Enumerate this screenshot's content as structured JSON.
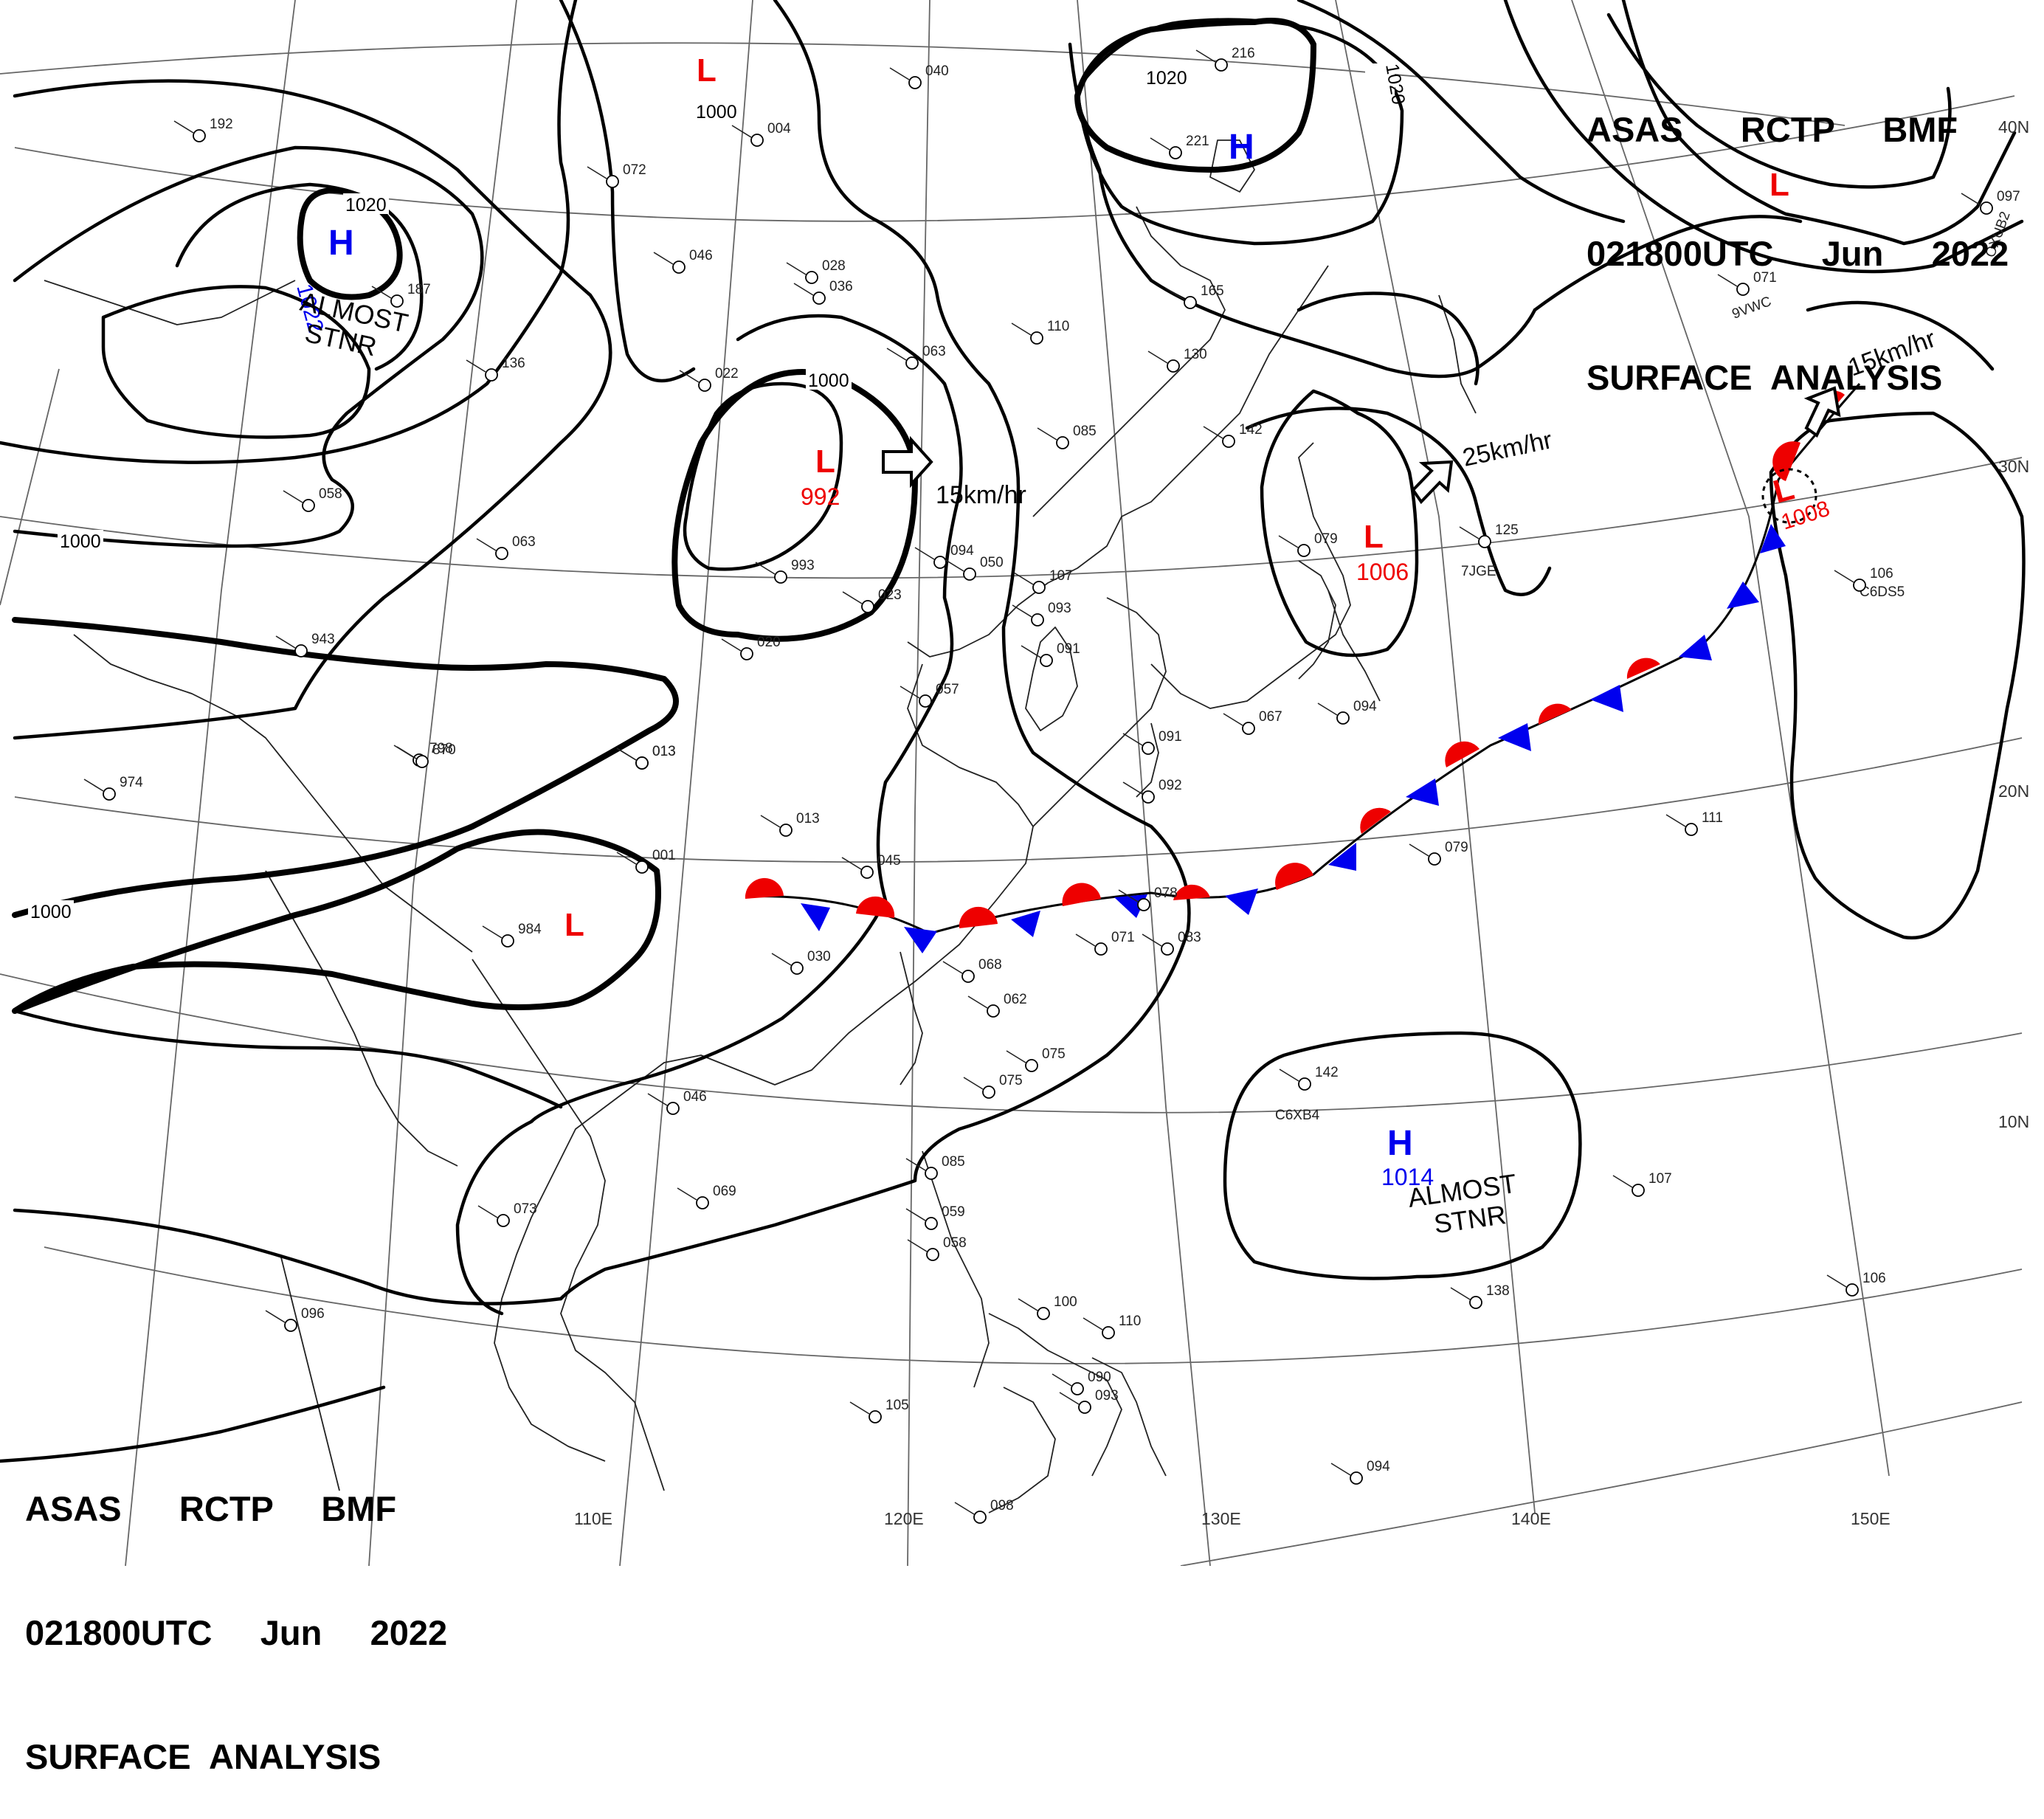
{
  "header": {
    "line1": "ASAS      RCTP     BMF",
    "line2": "021800UTC     Jun     2022",
    "line3": "SURFACE  ANALYSIS"
  },
  "footer": {
    "line1": "ASAS      RCTP     BMF",
    "line2": "021800UTC     Jun     2022",
    "line3": "SURFACE  ANALYSIS"
  },
  "colors": {
    "high": "#0000ee",
    "low": "#ee0000",
    "warm_front": "#ee0000",
    "cold_front": "#0000ee",
    "isobar": "#000000"
  },
  "pressure_centers": [
    {
      "kind": "H",
      "value": "1022",
      "note": "ALMOST\nSTNR"
    },
    {
      "kind": "H",
      "value": "",
      "note": ""
    },
    {
      "kind": "H",
      "value": "1014",
      "note": "ALMOST\nSTNR"
    },
    {
      "kind": "L",
      "value": "",
      "note": ""
    },
    {
      "kind": "L",
      "value": "992",
      "note": ""
    },
    {
      "kind": "L",
      "value": "1006",
      "note": ""
    },
    {
      "kind": "L",
      "value": "1008",
      "note": ""
    },
    {
      "kind": "L",
      "value": "",
      "note": ""
    },
    {
      "kind": "L",
      "value": "",
      "note": ""
    }
  ],
  "isobar_labels": [
    "1020",
    "1000",
    "1000",
    "1020",
    "1020",
    "1000",
    "1000"
  ],
  "motion_labels": [
    "15km/hr",
    "25km/hr",
    "15km/hr"
  ],
  "latitude_labels": [
    "40N",
    "30N",
    "20N",
    "10N"
  ],
  "longitude_labels": [
    "110E",
    "120E",
    "130E",
    "140E",
    "150E"
  ],
  "station_labels": [
    "C6XB4",
    "7JGE",
    "C6DS5",
    "9VWC",
    "OXUB2"
  ],
  "station_values": [
    "192",
    "072",
    "046",
    "022",
    "013",
    "058",
    "063",
    "943",
    "798",
    "870",
    "974",
    "013",
    "001",
    "984",
    "030",
    "013",
    "045",
    "068",
    "062",
    "075",
    "075",
    "020",
    "046",
    "069",
    "073",
    "096",
    "993",
    "023",
    "094",
    "050",
    "107",
    "093",
    "091",
    "057",
    "110",
    "085",
    "130",
    "165",
    "221",
    "216",
    "142",
    "079",
    "125",
    "091",
    "067",
    "094",
    "092",
    "071",
    "078",
    "083",
    "079",
    "111",
    "106",
    "142",
    "085",
    "059",
    "058",
    "100",
    "110",
    "090",
    "093",
    "105",
    "098",
    "138",
    "106",
    "107",
    "094",
    "097",
    "071",
    "187",
    "136",
    "004",
    "063",
    "028",
    "040",
    "036"
  ]
}
